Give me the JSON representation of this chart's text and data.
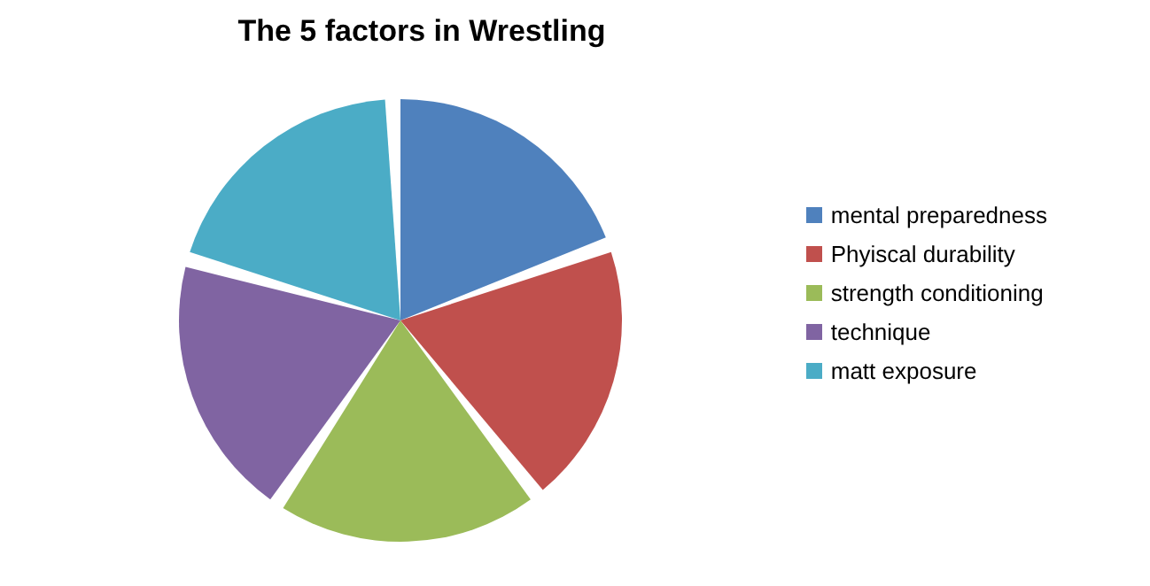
{
  "chart_data": {
    "type": "pie",
    "title": "The 5 factors in Wrestling",
    "categories": [
      "mental preparedness",
      "Phyiscal durability",
      "strength conditioning",
      "technique",
      "matt exposure"
    ],
    "values": [
      20,
      20,
      20,
      20,
      20
    ],
    "colors": [
      "#4f81bd",
      "#c0504d",
      "#9bbb59",
      "#8064a2",
      "#4bacc6"
    ],
    "legend": "right"
  }
}
